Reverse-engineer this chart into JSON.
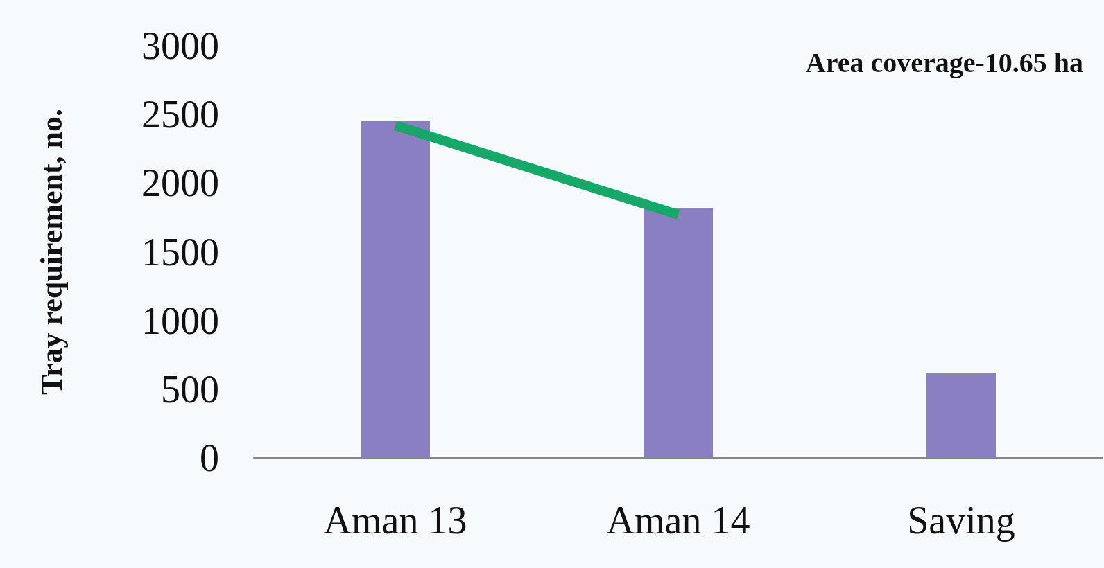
{
  "chart_data": {
    "type": "bar",
    "ylabel": "Tray requirement, no.",
    "annotations": [
      "Area coverage-10.65 ha"
    ],
    "categories": [
      "Aman 13",
      "Aman 14",
      "Saving"
    ],
    "series": [
      {
        "color": "#8a7fc0",
        "values": [
          2450,
          1820,
          620
        ]
      },
      {
        "type": "line",
        "color": "#16a868",
        "values": [
          2420,
          1770,
          null
        ],
        "marker": "none"
      }
    ],
    "ylim": [
      0,
      3000
    ],
    "yticks": [
      0,
      500,
      1000,
      1500,
      2000,
      2500,
      3000
    ],
    "grid": false
  }
}
